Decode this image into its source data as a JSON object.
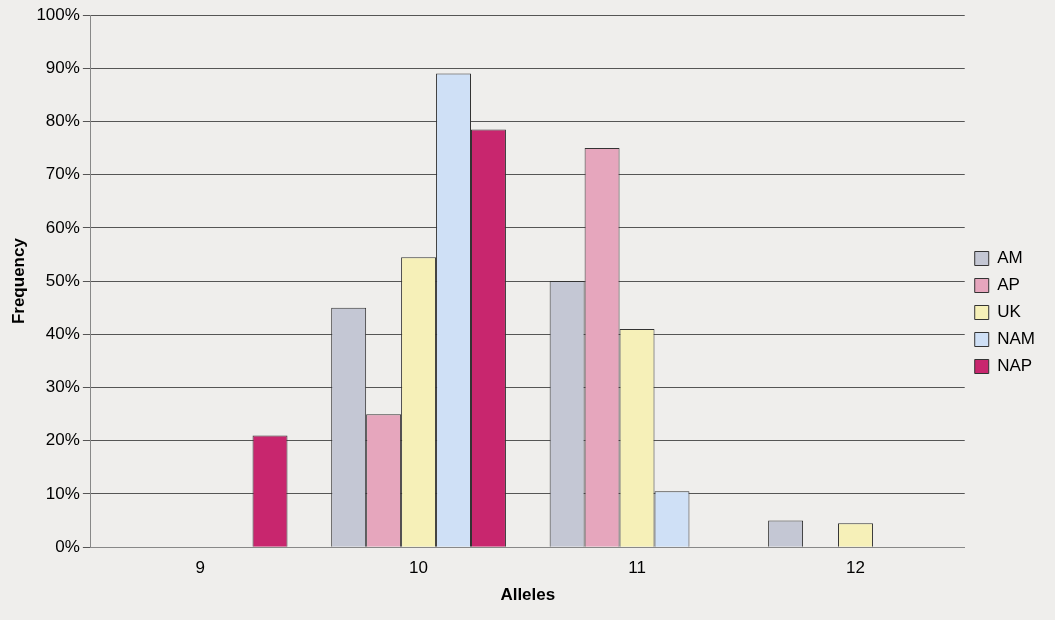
{
  "chart_data": {
    "type": "bar",
    "xlabel": "Alleles",
    "ylabel": "Frequency",
    "categories": [
      "9",
      "10",
      "11",
      "12"
    ],
    "series": [
      {
        "name": "AM",
        "color": "#c4c7d4",
        "values": [
          null,
          45,
          50,
          5
        ]
      },
      {
        "name": "AP",
        "color": "#e6a6bd",
        "values": [
          null,
          25,
          75,
          null
        ]
      },
      {
        "name": "UK",
        "color": "#f6f0b8",
        "values": [
          null,
          54.5,
          41,
          4.5
        ]
      },
      {
        "name": "NAM",
        "color": "#cfe0f6",
        "values": [
          null,
          89,
          10.5,
          null
        ]
      },
      {
        "name": "NAP",
        "color": "#c8266e",
        "values": [
          21,
          78.5,
          null,
          null
        ]
      }
    ],
    "ylim": [
      0,
      100
    ],
    "yticks": [
      {
        "value": 0,
        "label": "0%"
      },
      {
        "value": 10,
        "label": "10%"
      },
      {
        "value": 20,
        "label": "20%"
      },
      {
        "value": 30,
        "label": "30%"
      },
      {
        "value": 40,
        "label": "40%"
      },
      {
        "value": 50,
        "label": "50%"
      },
      {
        "value": 60,
        "label": "60%"
      },
      {
        "value": 70,
        "label": "70%"
      },
      {
        "value": 80,
        "label": "80%"
      },
      {
        "value": 90,
        "label": "90%"
      },
      {
        "value": 100,
        "label": "100%"
      }
    ],
    "grid": "y",
    "legend": "right"
  }
}
